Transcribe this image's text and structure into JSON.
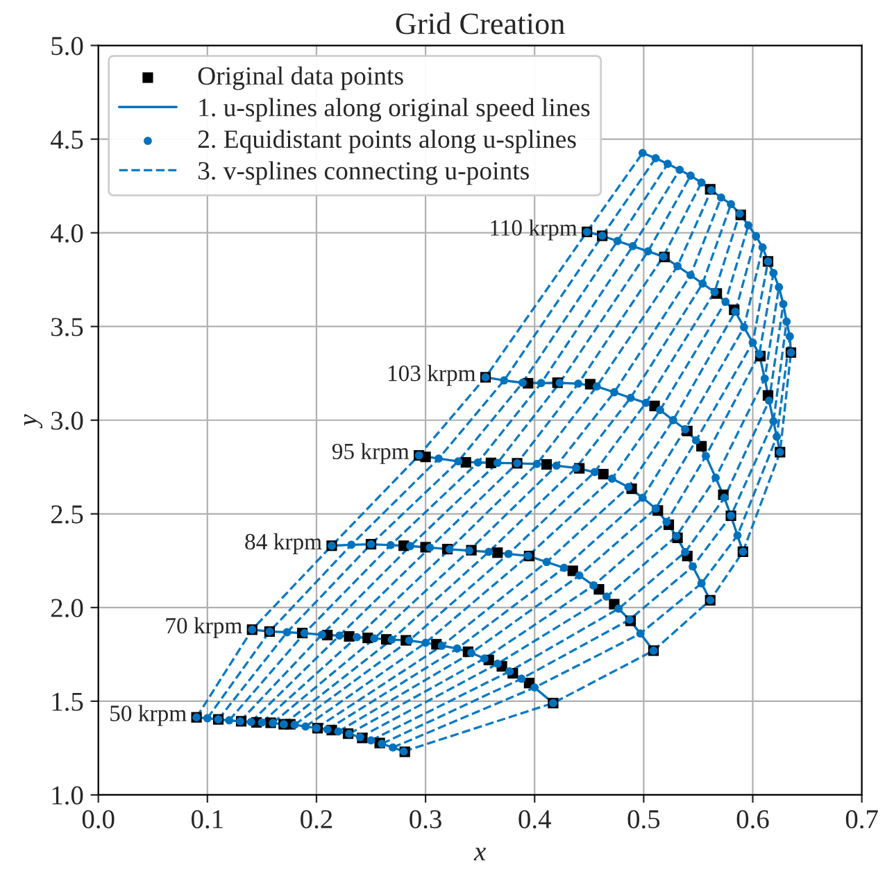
{
  "chart_data": {
    "type": "line",
    "title": "Grid Creation",
    "xlabel": "x",
    "ylabel": "y",
    "xlim": [
      0.0,
      0.7
    ],
    "ylim": [
      1.0,
      5.0
    ],
    "xticks": [
      {
        "value": 0,
        "label": "0.0"
      },
      0.1,
      0.2,
      0.3,
      0.4,
      0.5,
      0.6,
      0.7
    ],
    "yticks": [
      {
        "value": 1,
        "label": "1.0"
      },
      1.5,
      {
        "value": 2,
        "label": "2.0"
      },
      2.5,
      {
        "value": 3,
        "label": "3.0"
      },
      3.5,
      {
        "value": 4,
        "label": "4.0"
      },
      4.5,
      {
        "value": 5,
        "label": "5.0"
      }
    ],
    "grid": true,
    "legend": "top left",
    "annotations": [
      {
        "text": "50 krpm",
        "x": 0.09,
        "y": 1.414
      },
      {
        "text": "70 krpm",
        "x": 0.141,
        "y": 1.882
      },
      {
        "text": "84 krpm",
        "x": 0.214,
        "y": 2.33
      },
      {
        "text": "95 krpm",
        "x": 0.294,
        "y": 2.812
      },
      {
        "text": "103 krpm",
        "x": 0.355,
        "y": 3.229
      },
      {
        "text": "110 krpm",
        "x": 0.448,
        "y": 4.005
      }
    ],
    "series": [
      {
        "name": "Original data points",
        "type": "scatter",
        "marker": "square",
        "color": "#000000",
        "x": [
          0.09,
          0.11,
          0.131,
          0.145,
          0.158,
          0.17,
          0.176,
          0.201,
          0.214,
          0.229,
          0.242,
          0.258,
          0.281,
          0.141,
          0.157,
          0.187,
          0.21,
          0.23,
          0.247,
          0.264,
          0.282,
          0.31,
          0.339,
          0.358,
          0.37,
          0.38,
          0.395,
          0.417,
          0.214,
          0.25,
          0.28,
          0.3,
          0.32,
          0.342,
          0.366,
          0.395,
          0.435,
          0.459,
          0.473,
          0.488,
          0.509,
          0.294,
          0.3,
          0.337,
          0.36,
          0.384,
          0.411,
          0.441,
          0.463,
          0.489,
          0.513,
          0.523,
          0.531,
          0.54,
          0.561,
          0.355,
          0.394,
          0.421,
          0.451,
          0.51,
          0.54,
          0.553,
          0.573,
          0.58,
          0.591,
          0.448,
          0.462,
          0.519,
          0.567,
          0.583,
          0.607,
          0.614,
          0.625,
          0.561,
          0.589,
          0.614,
          0.635
        ],
        "values": [
          1.414,
          1.403,
          1.393,
          1.387,
          1.385,
          1.377,
          1.377,
          1.356,
          1.346,
          1.327,
          1.304,
          1.277,
          1.23,
          1.882,
          1.872,
          1.864,
          1.853,
          1.846,
          1.838,
          1.83,
          1.825,
          1.804,
          1.764,
          1.72,
          1.686,
          1.649,
          1.597,
          1.49,
          2.33,
          2.338,
          2.33,
          2.322,
          2.312,
          2.306,
          2.293,
          2.275,
          2.196,
          2.097,
          2.018,
          1.929,
          1.77,
          2.812,
          2.804,
          2.775,
          2.772,
          2.77,
          2.764,
          2.743,
          2.712,
          2.634,
          2.518,
          2.442,
          2.372,
          2.275,
          2.039,
          3.229,
          3.197,
          3.2,
          3.192,
          3.076,
          2.942,
          2.861,
          2.602,
          2.49,
          2.298,
          4.005,
          3.984,
          3.871,
          3.676,
          3.589,
          3.342,
          3.132,
          2.829,
          4.232,
          4.095,
          3.847,
          3.361
        ]
      },
      {
        "name": "1. u-splines along original speed lines",
        "marker": "none",
        "line_style": "solid",
        "color": "#0072bd",
        "x": [
          0.09,
          0.1,
          0.11,
          0.12,
          0.13,
          0.14,
          0.15,
          0.16,
          0.17,
          0.18,
          0.19,
          0.2,
          0.21,
          0.22,
          0.23,
          0.24,
          0.25,
          0.26,
          0.27,
          0.28,
          null,
          0.141,
          0.157,
          0.173,
          0.189,
          0.205,
          0.221,
          0.237,
          0.253,
          0.269,
          0.285,
          0.3,
          0.315,
          0.329,
          0.342,
          0.354,
          0.366,
          0.377,
          0.388,
          0.4,
          0.417,
          null,
          0.214,
          0.232,
          0.25,
          0.268,
          0.286,
          0.304,
          0.322,
          0.34,
          0.358,
          0.376,
          0.394,
          0.411,
          0.427,
          0.441,
          0.454,
          0.466,
          0.477,
          0.487,
          0.497,
          0.509,
          null,
          0.294,
          0.312,
          0.33,
          0.348,
          0.366,
          0.384,
          0.402,
          0.42,
          0.438,
          0.455,
          0.471,
          0.486,
          0.499,
          0.511,
          0.521,
          0.53,
          0.538,
          0.545,
          0.553,
          0.561,
          null,
          0.355,
          0.372,
          0.389,
          0.406,
          0.423,
          0.44,
          0.457,
          0.473,
          0.488,
          0.502,
          0.515,
          0.527,
          0.538,
          0.548,
          0.557,
          0.566,
          0.574,
          0.58,
          0.586,
          0.591,
          null,
          0.448,
          0.462,
          0.476,
          0.49,
          0.504,
          0.518,
          0.531,
          0.543,
          0.554,
          0.565,
          0.575,
          0.584,
          0.592,
          0.6,
          0.606,
          0.611,
          0.615,
          0.619,
          0.622,
          0.625,
          null,
          0.499,
          0.511,
          0.522,
          0.533,
          0.543,
          0.553,
          0.562,
          0.571,
          0.58,
          0.588,
          0.596,
          0.603,
          0.609,
          0.614,
          0.619,
          0.624,
          0.628,
          0.631,
          0.634,
          0.635
        ],
        "values": [
          1.414,
          1.409,
          1.403,
          1.398,
          1.393,
          1.389,
          1.386,
          1.384,
          1.377,
          1.374,
          1.365,
          1.357,
          1.349,
          1.338,
          1.326,
          1.308,
          1.291,
          1.273,
          1.253,
          1.232,
          null,
          1.882,
          1.872,
          1.868,
          1.863,
          1.855,
          1.85,
          1.842,
          1.835,
          1.829,
          1.824,
          1.812,
          1.796,
          1.781,
          1.758,
          1.728,
          1.7,
          1.659,
          1.62,
          1.573,
          1.49,
          null,
          2.33,
          2.335,
          2.338,
          2.333,
          2.328,
          2.32,
          2.311,
          2.304,
          2.297,
          2.286,
          2.276,
          2.243,
          2.212,
          2.171,
          2.118,
          2.058,
          1.994,
          1.935,
          1.861,
          1.77,
          null,
          2.812,
          2.795,
          2.78,
          2.774,
          2.772,
          2.77,
          2.766,
          2.757,
          2.745,
          2.723,
          2.688,
          2.643,
          2.586,
          2.528,
          2.457,
          2.381,
          2.296,
          2.219,
          2.129,
          2.039,
          null,
          3.229,
          3.212,
          3.2,
          3.198,
          3.199,
          3.195,
          3.18,
          3.149,
          3.119,
          3.092,
          3.054,
          3.0,
          2.951,
          2.892,
          2.809,
          2.693,
          2.586,
          2.49,
          2.385,
          2.298,
          null,
          4.005,
          3.984,
          3.956,
          3.929,
          3.901,
          3.873,
          3.822,
          3.774,
          3.729,
          3.684,
          3.632,
          3.579,
          3.496,
          3.414,
          3.352,
          3.222,
          3.104,
          2.994,
          2.912,
          2.829,
          null,
          4.426,
          4.398,
          4.368,
          4.336,
          4.305,
          4.268,
          4.228,
          4.188,
          4.153,
          4.102,
          4.04,
          3.982,
          3.922,
          3.847,
          3.785,
          3.71,
          3.62,
          3.526,
          3.447,
          3.361
        ]
      },
      {
        "name": "2. Equidistant points along u-splines",
        "type": "scatter",
        "marker": "circle",
        "color": "#0072bd",
        "x": [
          0.09,
          0.1,
          0.11,
          0.12,
          0.13,
          0.14,
          0.15,
          0.16,
          0.17,
          0.18,
          0.19,
          0.2,
          0.21,
          0.22,
          0.23,
          0.24,
          0.25,
          0.26,
          0.27,
          0.28,
          0.141,
          0.157,
          0.173,
          0.189,
          0.205,
          0.221,
          0.237,
          0.253,
          0.269,
          0.285,
          0.3,
          0.315,
          0.329,
          0.342,
          0.354,
          0.366,
          0.377,
          0.388,
          0.4,
          0.417,
          0.214,
          0.232,
          0.25,
          0.268,
          0.286,
          0.304,
          0.322,
          0.34,
          0.358,
          0.376,
          0.394,
          0.411,
          0.427,
          0.441,
          0.454,
          0.466,
          0.477,
          0.487,
          0.497,
          0.509,
          0.294,
          0.312,
          0.33,
          0.348,
          0.366,
          0.384,
          0.402,
          0.42,
          0.438,
          0.455,
          0.471,
          0.486,
          0.499,
          0.511,
          0.521,
          0.53,
          0.538,
          0.545,
          0.553,
          0.561,
          0.355,
          0.372,
          0.389,
          0.406,
          0.423,
          0.44,
          0.457,
          0.473,
          0.488,
          0.502,
          0.515,
          0.527,
          0.538,
          0.548,
          0.557,
          0.566,
          0.574,
          0.58,
          0.586,
          0.591,
          0.448,
          0.462,
          0.476,
          0.49,
          0.504,
          0.518,
          0.531,
          0.543,
          0.554,
          0.565,
          0.575,
          0.584,
          0.592,
          0.6,
          0.606,
          0.611,
          0.615,
          0.619,
          0.622,
          0.625,
          0.499,
          0.511,
          0.522,
          0.533,
          0.543,
          0.553,
          0.562,
          0.571,
          0.58,
          0.588,
          0.596,
          0.603,
          0.609,
          0.614,
          0.619,
          0.624,
          0.628,
          0.631,
          0.634,
          0.635
        ],
        "values": [
          1.414,
          1.409,
          1.403,
          1.398,
          1.393,
          1.389,
          1.386,
          1.384,
          1.377,
          1.374,
          1.365,
          1.357,
          1.349,
          1.338,
          1.326,
          1.308,
          1.291,
          1.273,
          1.253,
          1.232,
          1.882,
          1.872,
          1.868,
          1.863,
          1.855,
          1.85,
          1.842,
          1.835,
          1.829,
          1.824,
          1.812,
          1.796,
          1.781,
          1.758,
          1.728,
          1.7,
          1.659,
          1.62,
          1.573,
          1.49,
          2.33,
          2.335,
          2.338,
          2.333,
          2.328,
          2.32,
          2.311,
          2.304,
          2.297,
          2.286,
          2.276,
          2.243,
          2.212,
          2.171,
          2.118,
          2.058,
          1.994,
          1.935,
          1.861,
          1.77,
          2.812,
          2.795,
          2.78,
          2.774,
          2.772,
          2.77,
          2.766,
          2.757,
          2.745,
          2.723,
          2.688,
          2.643,
          2.586,
          2.528,
          2.457,
          2.381,
          2.296,
          2.219,
          2.129,
          2.039,
          3.229,
          3.212,
          3.2,
          3.198,
          3.199,
          3.195,
          3.18,
          3.149,
          3.119,
          3.092,
          3.054,
          3.0,
          2.951,
          2.892,
          2.809,
          2.693,
          2.586,
          2.49,
          2.385,
          2.298,
          4.005,
          3.984,
          3.956,
          3.929,
          3.901,
          3.873,
          3.822,
          3.774,
          3.729,
          3.684,
          3.632,
          3.579,
          3.496,
          3.414,
          3.352,
          3.222,
          3.104,
          2.994,
          2.912,
          2.829,
          4.426,
          4.398,
          4.368,
          4.336,
          4.305,
          4.268,
          4.228,
          4.188,
          4.153,
          4.102,
          4.04,
          3.982,
          3.922,
          3.847,
          3.785,
          3.71,
          3.62,
          3.526,
          3.447,
          3.361
        ]
      },
      {
        "name": "3. v-splines connecting u-points",
        "marker": "none",
        "line_style": "dashed",
        "color": "#0b7ac4",
        "x": [
          0.09,
          0.141,
          0.214,
          0.294,
          0.355,
          0.448,
          0.499,
          null,
          0.1,
          0.157,
          0.232,
          0.312,
          0.372,
          0.462,
          0.511,
          null,
          0.11,
          0.173,
          0.25,
          0.33,
          0.389,
          0.476,
          0.522,
          null,
          0.12,
          0.189,
          0.268,
          0.348,
          0.406,
          0.49,
          0.533,
          null,
          0.13,
          0.205,
          0.286,
          0.366,
          0.423,
          0.504,
          0.543,
          null,
          0.14,
          0.221,
          0.304,
          0.384,
          0.44,
          0.518,
          0.553,
          null,
          0.15,
          0.237,
          0.322,
          0.402,
          0.457,
          0.531,
          0.562,
          null,
          0.16,
          0.253,
          0.34,
          0.42,
          0.473,
          0.543,
          0.571,
          null,
          0.17,
          0.269,
          0.358,
          0.438,
          0.488,
          0.554,
          0.58,
          null,
          0.18,
          0.285,
          0.376,
          0.455,
          0.502,
          0.565,
          0.588,
          null,
          0.19,
          0.3,
          0.394,
          0.471,
          0.515,
          0.575,
          0.596,
          null,
          0.2,
          0.315,
          0.411,
          0.486,
          0.527,
          0.584,
          0.603,
          null,
          0.21,
          0.329,
          0.427,
          0.499,
          0.538,
          0.592,
          0.609,
          null,
          0.22,
          0.342,
          0.441,
          0.511,
          0.548,
          0.6,
          0.614,
          null,
          0.23,
          0.354,
          0.454,
          0.521,
          0.557,
          0.606,
          0.619,
          null,
          0.24,
          0.366,
          0.466,
          0.53,
          0.566,
          0.611,
          0.624,
          null,
          0.25,
          0.377,
          0.477,
          0.538,
          0.574,
          0.615,
          0.628,
          null,
          0.26,
          0.388,
          0.487,
          0.545,
          0.58,
          0.619,
          0.631,
          null,
          0.27,
          0.4,
          0.497,
          0.553,
          0.586,
          0.622,
          0.634,
          null,
          0.28,
          0.417,
          0.509,
          0.561,
          0.591,
          0.625,
          0.635
        ],
        "values": [
          1.414,
          1.882,
          2.33,
          2.812,
          3.229,
          4.005,
          4.426,
          null,
          1.409,
          1.872,
          2.335,
          2.795,
          3.212,
          3.984,
          4.398,
          null,
          1.403,
          1.868,
          2.338,
          2.78,
          3.2,
          3.956,
          4.368,
          null,
          1.398,
          1.863,
          2.333,
          2.774,
          3.198,
          3.929,
          4.336,
          null,
          1.393,
          1.855,
          2.328,
          2.772,
          3.199,
          3.901,
          4.305,
          null,
          1.389,
          1.85,
          2.32,
          2.77,
          3.195,
          3.873,
          4.268,
          null,
          1.386,
          1.842,
          2.311,
          2.766,
          3.18,
          3.822,
          4.228,
          null,
          1.384,
          1.835,
          2.304,
          2.757,
          3.149,
          3.774,
          4.188,
          null,
          1.377,
          1.829,
          2.297,
          2.745,
          3.119,
          3.729,
          4.153,
          null,
          1.374,
          1.824,
          2.286,
          2.723,
          3.092,
          3.684,
          4.102,
          null,
          1.365,
          1.812,
          2.276,
          2.688,
          3.054,
          3.632,
          4.04,
          null,
          1.357,
          1.796,
          2.243,
          2.643,
          3.0,
          3.579,
          3.982,
          null,
          1.349,
          1.781,
          2.212,
          2.586,
          2.951,
          3.496,
          3.922,
          null,
          1.338,
          1.758,
          2.171,
          2.528,
          2.892,
          3.414,
          3.847,
          null,
          1.326,
          1.728,
          2.118,
          2.457,
          2.809,
          3.352,
          3.785,
          null,
          1.308,
          1.7,
          2.058,
          2.381,
          2.693,
          3.222,
          3.71,
          null,
          1.291,
          1.659,
          1.994,
          2.296,
          2.586,
          3.104,
          3.62,
          null,
          1.273,
          1.62,
          1.935,
          2.219,
          2.49,
          2.994,
          3.526,
          null,
          1.253,
          1.573,
          1.861,
          2.129,
          2.385,
          2.912,
          3.447,
          null,
          1.232,
          1.49,
          1.77,
          2.039,
          2.298,
          2.829,
          3.361
        ]
      }
    ]
  }
}
